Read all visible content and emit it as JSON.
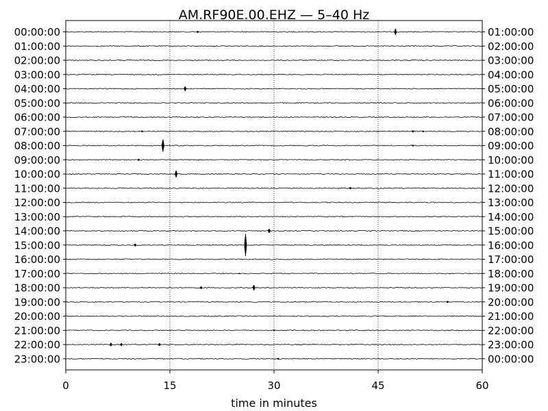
{
  "chart_data": {
    "type": "line",
    "title": "AM.RF90E.00.EHZ — 5–40 Hz",
    "xlabel": "time in minutes",
    "xlim": [
      0,
      60
    ],
    "x_ticks": [
      0,
      15,
      30,
      45,
      60
    ],
    "x_tick_labels": [
      "0",
      "15",
      "30",
      "45",
      "60"
    ],
    "vertical_gridlines_at": [
      15,
      30,
      45
    ],
    "grid": "dotted vertical",
    "trace_color": "#000000",
    "left_tick_labels": [
      "00:00:00",
      "01:00:00",
      "02:00:00",
      "03:00:00",
      "04:00:00",
      "05:00:00",
      "06:00:00",
      "07:00:00",
      "08:00:00",
      "09:00:00",
      "10:00:00",
      "11:00:00",
      "12:00:00",
      "13:00:00",
      "14:00:00",
      "15:00:00",
      "16:00:00",
      "17:00:00",
      "18:00:00",
      "19:00:00",
      "20:00:00",
      "21:00:00",
      "22:00:00",
      "23:00:00"
    ],
    "right_tick_labels": [
      "01:00:00",
      "02:00:00",
      "03:00:00",
      "04:00:00",
      "05:00:00",
      "06:00:00",
      "07:00:00",
      "08:00:00",
      "09:00:00",
      "10:00:00",
      "11:00:00",
      "12:00:00",
      "13:00:00",
      "14:00:00",
      "15:00:00",
      "16:00:00",
      "17:00:00",
      "18:00:00",
      "19:00:00",
      "20:00:00",
      "21:00:00",
      "22:00:00",
      "23:00:00",
      "00:00:00"
    ],
    "events": [
      {
        "row": 0,
        "minute": 19.0,
        "amplitude": 0.15
      },
      {
        "row": 0,
        "minute": 47.5,
        "amplitude": 0.45
      },
      {
        "row": 4,
        "minute": 17.2,
        "amplitude": 0.35
      },
      {
        "row": 7,
        "minute": 11.0,
        "amplitude": 0.12
      },
      {
        "row": 7,
        "minute": 50.0,
        "amplitude": 0.15
      },
      {
        "row": 7,
        "minute": 51.5,
        "amplitude": 0.12
      },
      {
        "row": 8,
        "minute": 14.0,
        "amplitude": 0.9
      },
      {
        "row": 8,
        "minute": 50.0,
        "amplitude": 0.12
      },
      {
        "row": 9,
        "minute": 10.5,
        "amplitude": 0.15
      },
      {
        "row": 10,
        "minute": 15.9,
        "amplitude": 0.5
      },
      {
        "row": 11,
        "minute": 41.0,
        "amplitude": 0.15
      },
      {
        "row": 14,
        "minute": 29.3,
        "amplitude": 0.3
      },
      {
        "row": 15,
        "minute": 10.0,
        "amplitude": 0.2
      },
      {
        "row": 15,
        "minute": 25.9,
        "amplitude": 1.6
      },
      {
        "row": 17,
        "minute": 25.0,
        "amplitude": 0.08
      },
      {
        "row": 18,
        "minute": 19.5,
        "amplitude": 0.2
      },
      {
        "row": 18,
        "minute": 27.1,
        "amplitude": 0.4
      },
      {
        "row": 19,
        "minute": 55.0,
        "amplitude": 0.15
      },
      {
        "row": 21,
        "minute": 30.0,
        "amplitude": 0.08
      },
      {
        "row": 22,
        "minute": 6.5,
        "amplitude": 0.25
      },
      {
        "row": 22,
        "minute": 8.0,
        "amplitude": 0.2
      },
      {
        "row": 22,
        "minute": 13.5,
        "amplitude": 0.2
      },
      {
        "row": 23,
        "minute": 30.6,
        "amplitude": 0.12
      }
    ]
  }
}
